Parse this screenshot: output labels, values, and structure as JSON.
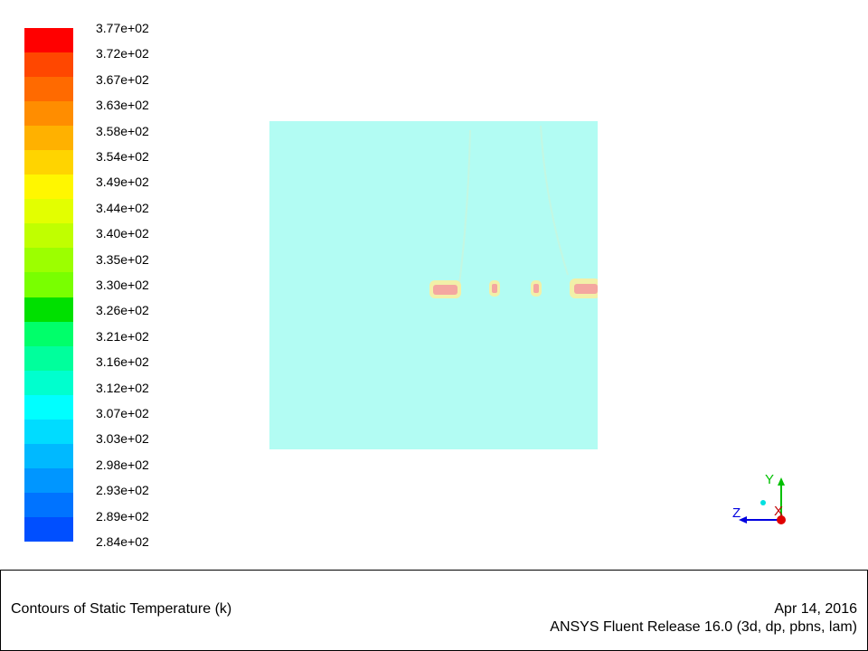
{
  "legend": {
    "labels": [
      "3.77e+02",
      "3.72e+02",
      "3.67e+02",
      "3.63e+02",
      "3.58e+02",
      "3.54e+02",
      "3.49e+02",
      "3.44e+02",
      "3.40e+02",
      "3.35e+02",
      "3.30e+02",
      "3.26e+02",
      "3.21e+02",
      "3.16e+02",
      "3.12e+02",
      "3.07e+02",
      "3.03e+02",
      "2.98e+02",
      "2.93e+02",
      "2.89e+02",
      "2.84e+02"
    ],
    "colors": [
      "#ff0000",
      "#ff4700",
      "#ff6a00",
      "#ff8d00",
      "#ffb100",
      "#ffd400",
      "#fff700",
      "#e3ff00",
      "#c0ff00",
      "#9cff00",
      "#79ff00",
      "#00e000",
      "#00ff6a",
      "#00ff9c",
      "#00ffce",
      "#00ffff",
      "#00dcff",
      "#00b9ff",
      "#0096ff",
      "#0073ff",
      "#004fff"
    ]
  },
  "field": {
    "background": "#b2fcf3",
    "hotspot_color": "#f4a7a0",
    "halo_color": "#f2f0a8"
  },
  "axes": {
    "y": "Y",
    "z": "Z",
    "x": "X"
  },
  "footer": {
    "title": "Contours of Static Temperature (k)",
    "date": "Apr 14, 2016",
    "release": "ANSYS Fluent Release 16.0 (3d, dp, pbns, lam)"
  }
}
